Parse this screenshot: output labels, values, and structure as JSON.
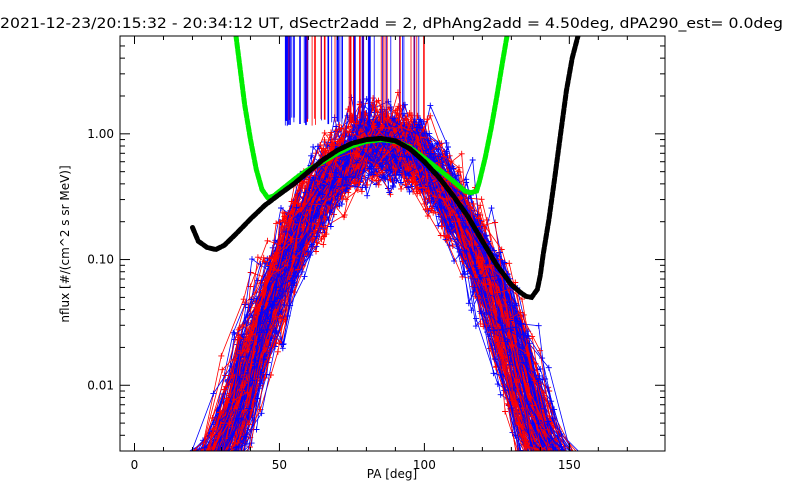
{
  "chart_data": {
    "type": "line",
    "title": "2021-12-23/20:15:32 - 20:34:12 UT, dSectr2add = 2, dPhAng2add = 4.50deg, dPA290_est=   0.0deg",
    "xlabel": "PA [deg]",
    "ylabel": "nflux [#/(cm^2 s sr MeV)]",
    "xlim": [
      -5,
      183
    ],
    "ylim": [
      0.003,
      6
    ],
    "yscale": "log",
    "grid": false,
    "x_ticks": [
      0,
      50,
      100,
      150
    ],
    "x_tick_labels": [
      "0",
      "50",
      "100",
      "150"
    ],
    "y_ticks": [
      0.01,
      0.1,
      1.0
    ],
    "y_tick_labels": [
      "0.01",
      "0.10",
      "1.00"
    ],
    "colors": {
      "red": "#ff0000",
      "blue": "#0000ff",
      "green": "#00ee00",
      "black": "#000000"
    },
    "series": [
      {
        "color": "#00ee00",
        "style": "thick-dashed",
        "x": [
          35,
          38,
          40,
          42,
          44,
          46,
          48,
          52,
          56,
          60,
          65,
          70,
          75,
          80,
          85,
          90,
          95,
          100,
          105,
          110,
          114,
          116,
          118,
          119,
          121,
          123,
          125,
          127,
          128.5
        ],
        "y": [
          6.0,
          1.7,
          0.9,
          0.52,
          0.36,
          0.31,
          0.32,
          0.38,
          0.45,
          0.52,
          0.6,
          0.7,
          0.8,
          0.87,
          0.9,
          0.87,
          0.78,
          0.64,
          0.52,
          0.42,
          0.35,
          0.34,
          0.35,
          0.42,
          0.65,
          1.1,
          2.0,
          3.8,
          6.0
        ]
      },
      {
        "color": "#000000",
        "style": "thick-dashed",
        "x": [
          20,
          22,
          25,
          28,
          31,
          35,
          40,
          45,
          50,
          55,
          60,
          65,
          70,
          75,
          80,
          85,
          90,
          95,
          100,
          105,
          110,
          115,
          120,
          125,
          130,
          133,
          135,
          137,
          139,
          140,
          141,
          143,
          145,
          147,
          149,
          151,
          153
        ],
        "y": [
          0.18,
          0.14,
          0.125,
          0.12,
          0.13,
          0.16,
          0.21,
          0.27,
          0.33,
          0.4,
          0.5,
          0.62,
          0.74,
          0.84,
          0.9,
          0.92,
          0.88,
          0.76,
          0.6,
          0.45,
          0.32,
          0.22,
          0.14,
          0.09,
          0.063,
          0.055,
          0.051,
          0.05,
          0.058,
          0.075,
          0.11,
          0.21,
          0.45,
          1.0,
          2.2,
          4.0,
          6.0
        ]
      }
    ]
  }
}
